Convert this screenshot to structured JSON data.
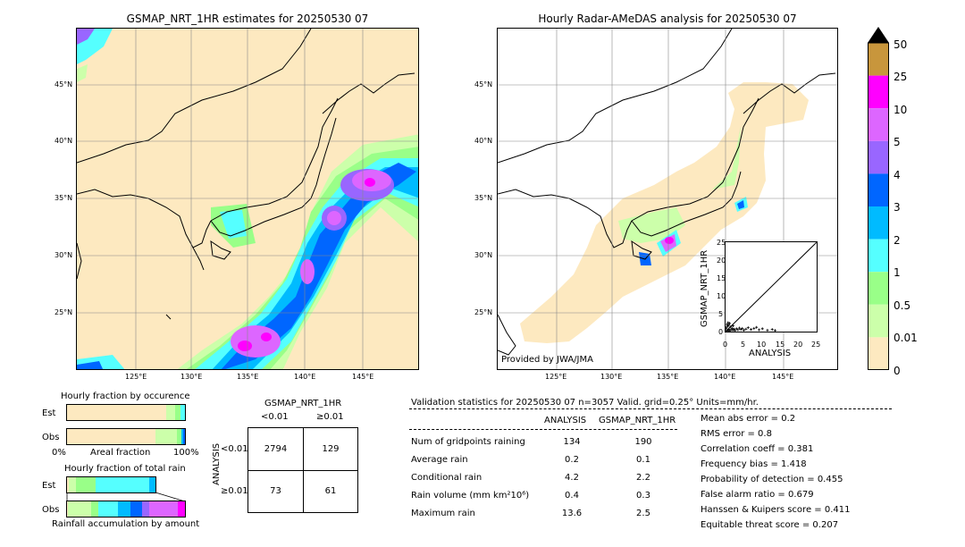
{
  "left_map": {
    "title": "GSMAP_NRT_1HR estimates for 20250530 07",
    "lat_ticks": [
      "45°N",
      "40°N",
      "35°N",
      "30°N",
      "25°N"
    ],
    "lon_ticks": [
      "125°E",
      "130°E",
      "135°E",
      "140°E",
      "145°E"
    ]
  },
  "right_map": {
    "title": "Hourly Radar-AMeDAS analysis for 20250530 07",
    "lat_ticks": [
      "45°N",
      "40°N",
      "35°N",
      "30°N",
      "25°N"
    ],
    "lon_ticks": [
      "125°E",
      "130°E",
      "135°E",
      "140°E",
      "145°E"
    ],
    "credit": "Provided by JWA/JMA"
  },
  "colorbar": {
    "labels": [
      "50",
      "25",
      "10",
      "5",
      "4",
      "3",
      "2",
      "1",
      "0.5",
      "0.01",
      "0"
    ],
    "colors": [
      "#c8963c",
      "#ff00ff",
      "#dd66ff",
      "#9966ff",
      "#0066ff",
      "#00bbff",
      "#55ffff",
      "#99ff88",
      "#ccffaa",
      "#fde9c0"
    ]
  },
  "scatter": {
    "xlabel": "ANALYSIS",
    "ylabel": "GSMAP_NRT_1HR",
    "ticks": [
      "0",
      "5",
      "10",
      "15",
      "20",
      "25"
    ]
  },
  "fraction_occurrence": {
    "title": "Hourly fraction by occurence",
    "row_est": "Est",
    "row_obs": "Obs",
    "x_left": "0%",
    "x_mid": "Areal fraction",
    "x_right": "100%"
  },
  "fraction_total": {
    "title": "Hourly fraction of total rain",
    "row_est": "Est",
    "row_obs": "Obs",
    "x_label": "Rainfall accumulation by amount"
  },
  "contingency": {
    "title": "GSMAP_NRT_1HR",
    "col_lt": "<0.01",
    "col_ge": "≥0.01",
    "row_axis": "ANALYSIS",
    "row_lt": "<0.01",
    "row_ge": "≥0.01",
    "a": "2794",
    "b": "129",
    "c": "73",
    "d": "61"
  },
  "validation": {
    "header": "Validation statistics for 20250530 07  n=3057 Valid. grid=0.25° Units=mm/hr.",
    "col_analysis": "ANALYSIS",
    "col_gsmap": "GSMAP_NRT_1HR",
    "rows": [
      {
        "label": "Num of gridpoints raining",
        "analysis": "134",
        "gsmap": "190"
      },
      {
        "label": "Average rain",
        "analysis": "0.2",
        "gsmap": "0.1"
      },
      {
        "label": "Conditional rain",
        "analysis": "4.2",
        "gsmap": "2.2"
      },
      {
        "label": "Rain volume (mm km²10⁶)",
        "analysis": "0.4",
        "gsmap": "0.3"
      },
      {
        "label": "Maximum rain",
        "analysis": "13.6",
        "gsmap": "2.5"
      }
    ],
    "scores": [
      "Mean abs error =    0.2",
      "RMS error =    0.8",
      "Correlation coeff =  0.381",
      "Frequency bias =  1.418",
      "Probability of detection =  0.455",
      "False alarm ratio =  0.679",
      "Hanssen & Kuipers score =  0.411",
      "Equitable threat score =  0.207"
    ]
  },
  "chart_data": {
    "type": "scatter",
    "xlabel": "ANALYSIS",
    "ylabel": "GSMAP_NRT_1HR",
    "xlim": [
      0,
      25
    ],
    "ylim": [
      0,
      25
    ],
    "points": [
      [
        0.3,
        0.2
      ],
      [
        0.5,
        0.4
      ],
      [
        0.8,
        0.3
      ],
      [
        1.0,
        0.6
      ],
      [
        1.2,
        0.2
      ],
      [
        1.5,
        0.5
      ],
      [
        1.8,
        0.9
      ],
      [
        2.0,
        0.4
      ],
      [
        2.3,
        0.7
      ],
      [
        2.6,
        0.3
      ],
      [
        3.0,
        0.8
      ],
      [
        3.4,
        0.5
      ],
      [
        3.8,
        1.0
      ],
      [
        4.2,
        0.6
      ],
      [
        4.6,
        0.9
      ],
      [
        5.0,
        0.4
      ],
      [
        5.6,
        0.7
      ],
      [
        6.2,
        1.1
      ],
      [
        7.0,
        0.6
      ],
      [
        7.8,
        0.9
      ],
      [
        8.5,
        1.2
      ],
      [
        9.2,
        0.5
      ],
      [
        10.1,
        0.8
      ],
      [
        11.5,
        0.4
      ],
      [
        12.8,
        0.6
      ],
      [
        13.6,
        0.3
      ],
      [
        0.2,
        1.2
      ],
      [
        0.6,
        1.5
      ],
      [
        0.9,
        1.8
      ],
      [
        1.4,
        1.3
      ],
      [
        0.4,
        2.0
      ],
      [
        1.1,
        2.3
      ],
      [
        0.7,
        2.5
      ],
      [
        2.1,
        1.6
      ],
      [
        0.1,
        0.9
      ]
    ]
  }
}
